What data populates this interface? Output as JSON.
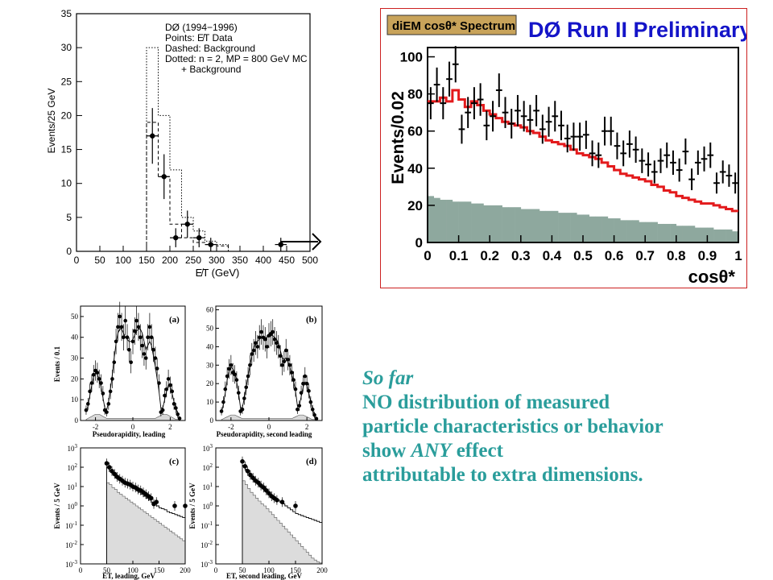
{
  "chart_data": [
    {
      "id": "met",
      "type": "histogram",
      "xlabel": "E̸T (GeV)",
      "ylabel": "Events/25 GeV",
      "xlim": [
        0,
        500
      ],
      "ylim": [
        0,
        35
      ],
      "xticks": [
        0,
        50,
        100,
        150,
        200,
        250,
        300,
        350,
        400,
        450,
        500
      ],
      "yticks": [
        0,
        5,
        10,
        15,
        20,
        25,
        30,
        35
      ],
      "legend": [
        "DØ (1994−1996)",
        "Points: E̸T Data",
        "Dashed: Background",
        "Dotted: n = 2, MP = 800 GeV MC",
        "+ Background"
      ],
      "data_points": [
        {
          "x": 162.5,
          "y": 17,
          "yerr": 4.1
        },
        {
          "x": 187.5,
          "y": 11,
          "yerr": 3.3
        },
        {
          "x": 212.5,
          "y": 2,
          "yerr": 1.4
        },
        {
          "x": 237.5,
          "y": 4,
          "yerr": 2
        },
        {
          "x": 262.5,
          "y": 2,
          "yerr": 1.4
        },
        {
          "x": 287.5,
          "y": 1,
          "yerr": 1
        },
        {
          "x": 437.5,
          "y": 1,
          "yerr": 1
        }
      ],
      "background_dashed": {
        "edges": [
          150,
          175,
          200,
          225,
          250,
          275,
          300,
          325,
          350,
          375,
          400,
          425,
          450,
          475,
          500
        ],
        "values": [
          19,
          11,
          4,
          2,
          1.3,
          1,
          0.8,
          0,
          0,
          0,
          0,
          0,
          0,
          0
        ]
      },
      "signal_dotted": {
        "edges": [
          150,
          175,
          200,
          225,
          250,
          275,
          300,
          325,
          350,
          375,
          400,
          425,
          450,
          475,
          500
        ],
        "values": [
          30,
          20,
          12,
          5,
          3,
          1.5,
          1,
          0,
          0,
          0,
          0,
          0,
          0,
          0
        ]
      }
    },
    {
      "id": "cos",
      "type": "histogram",
      "badge": "diEM cosθ* Spectrum",
      "title": "DØ Run II Preliminary",
      "xlabel": "cosθ*",
      "ylabel": "Events/0.02",
      "xlim": [
        0,
        1
      ],
      "ylim": [
        0,
        105
      ],
      "xticks": [
        0,
        0.1,
        0.2,
        0.3,
        0.4,
        0.5,
        0.6,
        0.7,
        0.8,
        0.9,
        1
      ],
      "yticks": [
        0,
        20,
        40,
        60,
        80,
        100
      ],
      "bin_width": 0.02,
      "mc_red": [
        76,
        76,
        78,
        76,
        82,
        77,
        73,
        76,
        74,
        71,
        69,
        67,
        65,
        64,
        63,
        62,
        60,
        59,
        57,
        55,
        54,
        53,
        52,
        50,
        48,
        47,
        46,
        45,
        43,
        41,
        39,
        37,
        36,
        35,
        34,
        33,
        31,
        30,
        28,
        27,
        25,
        24,
        23,
        22,
        21,
        21,
        20,
        19,
        18,
        17
      ],
      "data": [
        75,
        85,
        75,
        88,
        96,
        61,
        70,
        75,
        77,
        63,
        68,
        82,
        70,
        64,
        71,
        68,
        66,
        71,
        61,
        65,
        68,
        63,
        56,
        57,
        57,
        58,
        48,
        47,
        60,
        60,
        52,
        48,
        53,
        50,
        44,
        42,
        38,
        44,
        47,
        43,
        39,
        49,
        34,
        43,
        45,
        47,
        32,
        38,
        36,
        32
      ],
      "background": [
        25,
        24,
        23,
        23,
        22,
        22,
        22,
        21,
        21,
        20,
        20,
        20,
        19,
        19,
        19,
        18,
        18,
        18,
        17,
        17,
        17,
        16,
        16,
        16,
        15,
        15,
        14,
        14,
        14,
        13,
        13,
        12,
        12,
        12,
        11,
        11,
        11,
        10,
        10,
        10,
        9,
        9,
        9,
        8,
        8,
        8,
        7,
        7,
        7,
        6
      ],
      "colors": {
        "mc": "#e31a1c",
        "background": "#8ea89e",
        "frame": "#cc2020",
        "badge": "#c8a35a"
      }
    },
    {
      "id": "eta_leading",
      "type": "line",
      "panel_label": "(a)",
      "xlabel": "Pseudorapidity, leading",
      "ylabel": "Events / 0.1",
      "xlim": [
        -2.8,
        2.8
      ],
      "ylim": [
        0,
        55
      ],
      "xticks": [
        -2,
        0,
        2
      ],
      "yticks": [
        0,
        10,
        20,
        30,
        40,
        50
      ],
      "x": [
        -2.5,
        -2.4,
        -2.3,
        -2.2,
        -2.1,
        -2.0,
        -1.9,
        -1.8,
        -1.7,
        -1.6,
        -1.5,
        -1.4,
        -1.3,
        -1.2,
        -1.1,
        -1.0,
        -0.9,
        -0.8,
        -0.7,
        -0.6,
        -0.5,
        -0.4,
        -0.3,
        -0.2,
        -0.1,
        0.0,
        0.1,
        0.2,
        0.3,
        0.4,
        0.5,
        0.6,
        0.7,
        0.8,
        0.9,
        1.0,
        1.1,
        1.2,
        1.3,
        1.4,
        1.5,
        1.6,
        1.7,
        1.8,
        1.9,
        2.0,
        2.1,
        2.2,
        2.3,
        2.4,
        2.5
      ],
      "data": [
        5,
        8,
        14,
        18,
        22,
        24,
        23,
        20,
        18,
        13,
        5,
        4,
        8,
        14,
        20,
        28,
        38,
        45,
        50,
        45,
        40,
        48,
        40,
        34,
        28,
        38,
        43,
        48,
        45,
        40,
        36,
        32,
        30,
        40,
        45,
        40,
        34,
        30,
        25,
        18,
        4,
        5,
        12,
        15,
        20,
        17,
        14,
        8,
        6,
        3,
        1
      ],
      "model": [
        4,
        7,
        12,
        17,
        21,
        23,
        22,
        20,
        16,
        11,
        6,
        5,
        9,
        15,
        22,
        30,
        37,
        42,
        44,
        44,
        42,
        40,
        39,
        38,
        38,
        39,
        41,
        43,
        44,
        44,
        42,
        38,
        34,
        36,
        38,
        36,
        31,
        26,
        20,
        14,
        6,
        6,
        10,
        14,
        17,
        16,
        13,
        9,
        6,
        3,
        1
      ],
      "background": [
        0.5,
        1,
        1.5,
        2,
        2.5,
        3,
        3,
        3,
        2.5,
        2,
        1.5,
        1,
        1,
        1,
        1,
        1,
        1,
        1,
        1,
        1,
        1,
        1,
        1,
        1,
        1,
        1,
        1,
        1,
        1,
        1,
        1,
        1,
        1,
        1,
        1,
        1,
        1,
        1,
        1.5,
        2,
        2.5,
        3,
        3,
        3,
        2.5,
        2,
        1.5,
        1,
        0.5,
        0.5,
        0.5
      ]
    },
    {
      "id": "eta_second",
      "type": "line",
      "panel_label": "(b)",
      "xlabel": "Pseudorapidity, second leading",
      "ylabel": "",
      "xlim": [
        -2.8,
        2.8
      ],
      "ylim": [
        0,
        62
      ],
      "xticks": [
        -2,
        0,
        2
      ],
      "yticks": [
        0,
        10,
        20,
        30,
        40,
        50,
        60
      ],
      "x": [
        -2.5,
        -2.4,
        -2.3,
        -2.2,
        -2.1,
        -2.0,
        -1.9,
        -1.8,
        -1.7,
        -1.6,
        -1.5,
        -1.4,
        -1.3,
        -1.2,
        -1.1,
        -1.0,
        -0.9,
        -0.8,
        -0.7,
        -0.6,
        -0.5,
        -0.4,
        -0.3,
        -0.2,
        -0.1,
        0.0,
        0.1,
        0.2,
        0.3,
        0.4,
        0.5,
        0.6,
        0.7,
        0.8,
        0.9,
        1.0,
        1.1,
        1.2,
        1.3,
        1.4,
        1.5,
        1.6,
        1.7,
        1.8,
        1.9,
        2.0,
        2.1,
        2.2,
        2.3,
        2.4,
        2.5
      ],
      "data": [
        5,
        10,
        17,
        24,
        28,
        30,
        26,
        25,
        22,
        15,
        5,
        6,
        12,
        18,
        24,
        30,
        36,
        38,
        42,
        40,
        45,
        48,
        45,
        44,
        40,
        46,
        47,
        48,
        44,
        42,
        40,
        35,
        30,
        32,
        38,
        33,
        30,
        26,
        22,
        17,
        6,
        8,
        15,
        20,
        24,
        20,
        16,
        10,
        6,
        3,
        1
      ],
      "model": [
        4,
        9,
        15,
        22,
        27,
        29,
        28,
        26,
        21,
        15,
        7,
        7,
        12,
        18,
        24,
        30,
        35,
        39,
        42,
        43,
        44,
        45,
        45,
        45,
        45,
        46,
        46,
        46,
        45,
        44,
        42,
        38,
        34,
        33,
        34,
        32,
        29,
        25,
        21,
        16,
        8,
        8,
        13,
        18,
        21,
        19,
        15,
        10,
        6,
        3,
        1
      ],
      "background": [
        0.5,
        1,
        1.5,
        2,
        2.5,
        3,
        3,
        3,
        2.5,
        2,
        1.5,
        1,
        1,
        1,
        1,
        1,
        1,
        1,
        1,
        1,
        1,
        1,
        1,
        1,
        1,
        1,
        1,
        1,
        1,
        1,
        1,
        1,
        1,
        1,
        1,
        1,
        1,
        1,
        1.5,
        2,
        2.5,
        3,
        3,
        3,
        2.5,
        2,
        1.5,
        1,
        0.5,
        0.5,
        0.5
      ]
    },
    {
      "id": "et_leading",
      "type": "histogram",
      "panel_label": "(c)",
      "xlabel": "ET, leading, GeV",
      "ylabel": "Events / 5 GeV",
      "xlim": [
        0,
        200
      ],
      "ylim_log10": [
        -3,
        3
      ],
      "xticks": [
        0,
        50,
        100,
        150,
        200
      ],
      "yticks_log10": [
        -3,
        -2,
        -1,
        0,
        1,
        2,
        3
      ],
      "points_x": [
        50,
        55,
        60,
        65,
        70,
        75,
        80,
        85,
        90,
        95,
        100,
        105,
        110,
        115,
        120,
        125,
        130,
        135,
        140,
        145,
        180,
        200
      ],
      "points_log10": [
        2.2,
        2.0,
        1.8,
        1.65,
        1.5,
        1.4,
        1.3,
        1.2,
        1.15,
        1.1,
        1.0,
        0.95,
        0.85,
        0.8,
        0.7,
        0.6,
        0.5,
        0.4,
        0.1,
        0.2,
        0.0,
        0.0
      ],
      "bkg_log10": [
        1.2,
        1.1,
        0.95,
        0.85,
        0.7,
        0.6,
        0.5,
        0.4,
        0.3,
        0.2,
        0.1,
        0.0,
        -0.1,
        -0.2,
        -0.3,
        -0.4,
        -0.5,
        -0.6,
        -0.7,
        -0.8,
        -0.9,
        -1.0,
        -1.1,
        -1.2,
        -1.3,
        -1.4,
        -1.5,
        -1.6,
        -1.7,
        -1.8
      ],
      "model_log10": [
        2.0,
        1.85,
        1.7,
        1.55,
        1.45,
        1.35,
        1.25,
        1.15,
        1.05,
        1.0,
        0.9,
        0.8,
        0.7,
        0.6,
        0.5,
        0.4,
        0.3,
        0.2,
        0.1,
        0.0,
        -0.1,
        -0.15,
        -0.2,
        -0.3,
        -0.35,
        -0.4,
        -0.45,
        -0.5,
        -0.55,
        -0.6
      ]
    },
    {
      "id": "et_second",
      "type": "histogram",
      "panel_label": "(d)",
      "xlabel": "ET, second leading, GeV",
      "ylabel": "Events / 5 GeV",
      "xlim": [
        0,
        200
      ],
      "ylim_log10": [
        -3,
        3
      ],
      "xticks": [
        0,
        50,
        100,
        150,
        200
      ],
      "yticks_log10": [
        -3,
        -2,
        -1,
        0,
        1,
        2,
        3
      ],
      "points_x": [
        50,
        55,
        60,
        65,
        70,
        75,
        80,
        85,
        90,
        95,
        100,
        105,
        110,
        115,
        125,
        150
      ],
      "points_log10": [
        2.3,
        2.05,
        1.8,
        1.6,
        1.45,
        1.3,
        1.2,
        1.05,
        0.95,
        0.8,
        0.65,
        0.5,
        0.4,
        0.3,
        0.2,
        0.0
      ],
      "bkg_log10": [
        1.3,
        1.1,
        0.9,
        0.7,
        0.55,
        0.4,
        0.25,
        0.1,
        0.0,
        -0.15,
        -0.3,
        -0.45,
        -0.6,
        -0.75,
        -0.9,
        -1.05,
        -1.2,
        -1.35,
        -1.5,
        -1.65,
        -1.8,
        -1.95,
        -2.1,
        -2.25,
        -2.4,
        -2.55,
        -2.7,
        -2.8,
        -2.9,
        -2.95
      ],
      "model_log10": [
        2.1,
        1.9,
        1.7,
        1.5,
        1.35,
        1.2,
        1.05,
        0.95,
        0.8,
        0.7,
        0.6,
        0.5,
        0.4,
        0.3,
        0.2,
        0.1,
        0.0,
        -0.1,
        -0.2,
        -0.3,
        -0.4,
        -0.45,
        -0.5,
        -0.55,
        -0.6,
        -0.65,
        -0.7,
        -0.75,
        -0.8,
        -0.85
      ]
    }
  ],
  "caption": {
    "line1": "So far",
    "line2": "NO distribution of measured",
    "line3": "particle characteristics or behavior",
    "line4_word": "show",
    "line4_em": "ANY",
    "line4_rest": "effect",
    "line5": "attributable to extra dimensions."
  }
}
